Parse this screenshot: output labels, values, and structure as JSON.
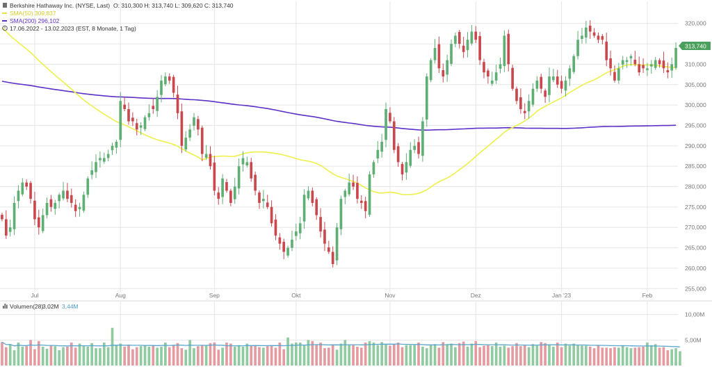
{
  "legend": {
    "title": "Berkshire Hathaway Inc. (NYSE, Last)",
    "ohlc": "O: 310,300   H: 313,740   L: 309,620   C: 313,740",
    "sma50": "SMA(50)  309,837",
    "sma200": "SMA(200)  296,102",
    "period": "17.06.2022 - 13.02.2023   (EST, 8 Monate, 1 Tag)"
  },
  "volume_legend": {
    "label": "Volumen(28)",
    "value1": "3,02M",
    "value2": "3,44M"
  },
  "last_price_label": "313,740",
  "colors": {
    "up": "#5fae73",
    "down": "#c9474d",
    "sma50": "#eef04a",
    "sma200": "#5b2fc8",
    "vol_up": "#8fcaa0",
    "vol_down": "#e59aa0",
    "vol_avg": "#5aa7cc",
    "grid": "#e6e6e6",
    "label": "#777777",
    "price_tag": "#4aa05c"
  },
  "chart_data": [
    {
      "type": "candlestick",
      "title": "",
      "ylim": [
        253,
        322
      ],
      "y_ticks": [
        {
          "v": 255,
          "label": "255,000"
        },
        {
          "v": 260,
          "label": "260,000"
        },
        {
          "v": 265,
          "label": "265,000"
        },
        {
          "v": 270,
          "label": "270,000"
        },
        {
          "v": 275,
          "label": "275,000"
        },
        {
          "v": 280,
          "label": "280,000"
        },
        {
          "v": 285,
          "label": "285,000"
        },
        {
          "v": 290,
          "label": "290,000"
        },
        {
          "v": 295,
          "label": "295,000"
        },
        {
          "v": 300,
          "label": "300,000"
        },
        {
          "v": 305,
          "label": "305,000"
        },
        {
          "v": 310,
          "label": "310,000"
        },
        {
          "v": 315,
          "label": "315,000"
        },
        {
          "v": 320,
          "label": "320,000"
        }
      ],
      "x_ticks": [
        {
          "i": 8,
          "label": "Jul"
        },
        {
          "i": 29,
          "label": "Aug"
        },
        {
          "i": 52,
          "label": "Sep"
        },
        {
          "i": 72,
          "label": "Okt"
        },
        {
          "i": 95,
          "label": "Nov"
        },
        {
          "i": 116,
          "label": "Dez"
        },
        {
          "i": 137,
          "label": "Jan '23"
        },
        {
          "i": 158,
          "label": "Feb"
        }
      ],
      "n_slots": 166,
      "close": [
        272,
        268,
        270,
        276,
        279,
        281,
        280,
        277,
        272,
        270,
        273,
        276,
        275,
        276,
        278,
        279,
        277,
        276,
        274,
        275,
        278,
        282,
        284,
        286,
        287,
        287,
        288,
        290,
        291,
        301,
        299,
        296,
        296,
        294,
        295,
        297,
        298,
        299,
        302,
        306,
        307,
        306,
        303,
        298,
        290,
        292,
        294,
        297,
        294,
        288,
        288,
        285,
        279,
        277,
        282,
        279,
        276,
        280,
        285,
        287,
        286,
        282,
        279,
        276,
        277,
        275,
        271,
        268,
        266,
        264,
        265,
        267,
        269,
        271,
        278,
        279,
        276,
        273,
        269,
        266,
        264,
        261,
        270,
        277,
        279,
        281,
        280,
        277,
        276,
        274,
        283,
        286,
        289,
        291,
        299,
        296,
        289,
        286,
        283,
        286,
        289,
        290,
        288,
        296,
        307,
        311,
        314,
        309,
        307,
        311,
        315,
        317,
        315,
        313,
        316,
        318,
        316,
        311,
        308,
        307,
        306,
        308,
        310,
        317,
        310,
        304,
        301,
        299,
        298,
        301,
        304,
        306,
        304,
        302,
        307,
        307,
        305,
        304,
        306,
        309,
        312,
        316,
        317,
        319,
        318,
        317,
        316,
        316,
        311,
        309,
        306,
        309,
        311,
        311,
        312,
        310,
        308,
        309,
        309,
        310,
        311,
        310,
        309,
        308,
        310,
        314
      ]
    },
    {
      "type": "bar",
      "title": "Volumen",
      "ylim": [
        0,
        12
      ],
      "y_ticks": [
        {
          "v": 5,
          "label": "5,00M"
        },
        {
          "v": 10,
          "label": "10,00M"
        }
      ],
      "values": [
        4.6,
        3.6,
        4.2,
        3.0,
        4.5,
        3.7,
        3.8,
        5.0,
        3.2,
        4.8,
        3.7,
        3.3,
        3.9,
        3.8,
        3.0,
        3.6,
        3.7,
        4.5,
        3.5,
        4.3,
        3.9,
        3.7,
        4.4,
        3.4,
        3.4,
        4.5,
        3.6,
        7.4,
        4.0,
        4.3,
        3.7,
        4.0,
        3.2,
        3.6,
        3.8,
        3.9,
        3.7,
        4.0,
        3.5,
        3.7,
        4.5,
        3.6,
        4.0,
        4.4,
        3.4,
        3.1,
        5.0,
        3.4,
        3.8,
        4.0,
        4.0,
        4.4,
        4.5,
        3.1,
        3.5,
        4.5,
        4.3,
        3.7,
        4.0,
        3.7,
        4.3,
        3.9,
        3.9,
        3.6,
        3.5,
        3.8,
        4.0,
        3.5,
        4.5,
        3.2,
        5.5,
        4.3,
        4.5,
        4.5,
        3.9,
        5.0,
        4.8,
        4.0,
        4.5,
        3.4,
        3.5,
        4.1,
        3.1,
        4.3,
        5.0,
        4.0,
        4.0,
        3.7,
        3.5,
        4.5,
        4.8,
        4.5,
        4.0,
        4.6,
        4.1,
        3.9,
        4.2,
        4.5,
        3.6,
        4.0,
        4.0,
        4.0,
        4.5,
        3.7,
        3.4,
        4.0,
        4.2,
        3.5,
        4.6,
        4.2,
        4.3,
        3.6,
        4.4,
        4.7,
        3.7,
        4.3,
        4.8,
        3.6,
        3.9,
        4.0,
        3.8,
        4.5,
        3.7,
        3.9,
        3.5,
        3.8,
        4.4,
        3.8,
        4.0,
        3.6,
        4.2,
        3.9,
        4.6,
        4.4,
        4.0,
        3.7,
        4.5,
        3.6,
        4.3,
        3.9,
        4.3,
        4.0,
        3.9,
        3.9,
        3.7,
        3.4,
        3.9,
        3.5,
        3.5,
        3.4,
        3.6,
        3.5,
        3.9,
        3.6,
        3.4,
        3.5,
        3.6,
        3.7,
        4.5,
        4.0,
        4.2,
        3.5,
        3.6,
        3.0,
        3.2,
        3.4,
        2.8
      ]
    }
  ]
}
